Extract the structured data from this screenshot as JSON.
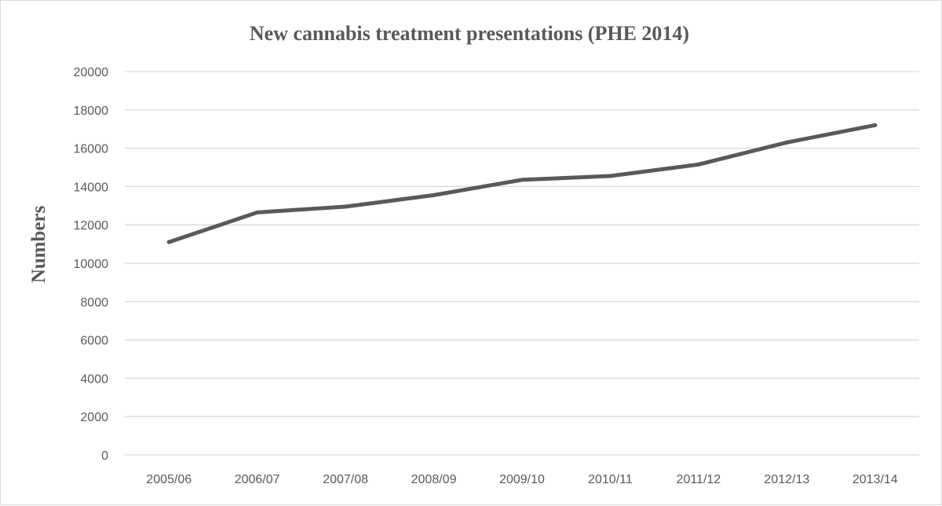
{
  "chart_data": {
    "type": "line",
    "title": "New cannabis  treatment presentations (PHE 2014)",
    "xlabel": "",
    "ylabel": "Numbers",
    "categories": [
      "2005/06",
      "2006/07",
      "2007/08",
      "2008/09",
      "2009/10",
      "2010/11",
      "2011/12",
      "2012/13",
      "2013/14"
    ],
    "series": [
      {
        "values": [
          11100,
          12650,
          12950,
          13550,
          14350,
          14550,
          15150,
          16300,
          17200
        ]
      }
    ],
    "ylim": [
      0,
      20000
    ],
    "yticks": [
      0,
      2000,
      4000,
      6000,
      8000,
      10000,
      12000,
      14000,
      16000,
      18000,
      20000
    ],
    "grid": true,
    "legend": "none",
    "colors": {
      "line": "#595959",
      "grid": "#d9d9d9",
      "text": "#595959"
    }
  }
}
